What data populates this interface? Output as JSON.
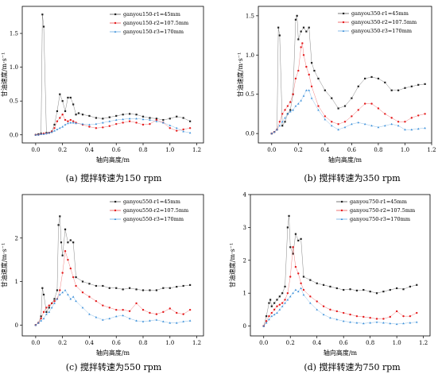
{
  "chart_data": [
    {
      "type": "line",
      "caption": "(a) 搅拌转速为150 rpm",
      "xlabel": "轴向高度/m",
      "ylabel": "甘油速度/m·s⁻¹",
      "xlim": [
        -0.1,
        1.25
      ],
      "ylim": [
        -0.12,
        1.9
      ],
      "xticks": [
        0.0,
        0.2,
        0.4,
        0.6,
        0.8,
        1.0,
        1.2
      ],
      "xtick_labels": [
        "0.0",
        "0.2",
        "0.4",
        "0.6",
        "0.8",
        "1.0",
        "1.2"
      ],
      "yticks": [
        0.0,
        0.5,
        1.0,
        1.5
      ],
      "ytick_labels": [
        "0.0",
        "0.5",
        "1.0",
        "1.5"
      ],
      "legend_position": "top-right",
      "series": [
        {
          "name": "ganyou150-r1=45mm",
          "color": "#222222",
          "marker": "square",
          "x": [
            0.0,
            0.02,
            0.04,
            0.05,
            0.06,
            0.08,
            0.1,
            0.12,
            0.14,
            0.16,
            0.18,
            0.2,
            0.22,
            0.24,
            0.26,
            0.28,
            0.3,
            0.32,
            0.35,
            0.4,
            0.45,
            0.5,
            0.55,
            0.6,
            0.65,
            0.7,
            0.75,
            0.8,
            0.85,
            0.9,
            0.95,
            1.0,
            1.05,
            1.1,
            1.15
          ],
          "y": [
            0.0,
            0.01,
            0.02,
            1.78,
            1.6,
            0.03,
            0.03,
            0.05,
            0.15,
            0.35,
            0.6,
            0.5,
            0.35,
            0.55,
            0.55,
            0.45,
            0.3,
            0.32,
            0.3,
            0.28,
            0.25,
            0.24,
            0.26,
            0.28,
            0.3,
            0.31,
            0.3,
            0.27,
            0.25,
            0.24,
            0.22,
            0.24,
            0.27,
            0.25,
            0.2
          ]
        },
        {
          "name": "ganyou150-r2=107.5mm",
          "color": "#e41a1c",
          "marker": "circle",
          "x": [
            0.0,
            0.02,
            0.04,
            0.06,
            0.08,
            0.1,
            0.12,
            0.14,
            0.16,
            0.18,
            0.2,
            0.22,
            0.24,
            0.26,
            0.28,
            0.3,
            0.35,
            0.4,
            0.45,
            0.5,
            0.55,
            0.6,
            0.65,
            0.7,
            0.75,
            0.8,
            0.85,
            0.9,
            0.95,
            1.0,
            1.05,
            1.1,
            1.15
          ],
          "y": [
            0.0,
            0.0,
            0.01,
            0.02,
            0.02,
            0.03,
            0.05,
            0.1,
            0.2,
            0.25,
            0.3,
            0.22,
            0.2,
            0.22,
            0.2,
            0.18,
            0.15,
            0.12,
            0.1,
            0.11,
            0.13,
            0.16,
            0.18,
            0.2,
            0.18,
            0.15,
            0.16,
            0.22,
            0.18,
            0.1,
            0.06,
            0.08,
            0.1
          ]
        },
        {
          "name": "ganyou150-r3=170mm",
          "color": "#3a8fd9",
          "marker": "triangle",
          "x": [
            0.0,
            0.02,
            0.04,
            0.06,
            0.08,
            0.1,
            0.12,
            0.14,
            0.16,
            0.18,
            0.2,
            0.22,
            0.24,
            0.26,
            0.28,
            0.3,
            0.35,
            0.4,
            0.45,
            0.5,
            0.55,
            0.6,
            0.65,
            0.7,
            0.75,
            0.8,
            0.85,
            0.9,
            0.95,
            1.0,
            1.05,
            1.1,
            1.15
          ],
          "y": [
            0.0,
            0.0,
            0.01,
            0.01,
            0.02,
            0.03,
            0.04,
            0.06,
            0.08,
            0.1,
            0.12,
            0.15,
            0.17,
            0.18,
            0.18,
            0.17,
            0.16,
            0.15,
            0.16,
            0.18,
            0.2,
            0.22,
            0.23,
            0.24,
            0.24,
            0.23,
            0.22,
            0.2,
            0.18,
            0.14,
            0.1,
            0.05,
            0.03
          ]
        }
      ]
    },
    {
      "type": "line",
      "caption": "(b) 搅拌转速为350 rpm",
      "xlabel": "轴向高度/m",
      "ylabel": "甘油速度/m·s⁻¹",
      "xlim": [
        -0.1,
        1.2
      ],
      "ylim": [
        -0.12,
        1.62
      ],
      "xticks": [
        0.0,
        0.2,
        0.4,
        0.6,
        0.8,
        1.0,
        1.2
      ],
      "xtick_labels": [
        "0.0",
        "0.2",
        "0.4",
        "0.6",
        "0.8",
        "1.0",
        "1.2"
      ],
      "yticks": [
        0.0,
        0.5,
        1.0,
        1.5
      ],
      "ytick_labels": [
        "0.0",
        "0.5",
        "1.0",
        "1.5"
      ],
      "legend_position": "top-right",
      "series": [
        {
          "name": "ganyou350-r1=45mm",
          "color": "#222222",
          "marker": "square",
          "x": [
            0.0,
            0.02,
            0.04,
            0.05,
            0.06,
            0.08,
            0.1,
            0.12,
            0.14,
            0.16,
            0.18,
            0.19,
            0.2,
            0.22,
            0.24,
            0.26,
            0.28,
            0.3,
            0.32,
            0.35,
            0.4,
            0.45,
            0.5,
            0.55,
            0.6,
            0.65,
            0.7,
            0.75,
            0.8,
            0.85,
            0.9,
            0.95,
            1.0,
            1.05,
            1.1,
            1.15
          ],
          "y": [
            0.0,
            0.02,
            0.05,
            1.35,
            1.25,
            0.1,
            0.15,
            0.25,
            0.3,
            0.5,
            1.45,
            1.5,
            1.2,
            1.3,
            1.35,
            1.3,
            1.35,
            0.9,
            0.8,
            0.7,
            0.55,
            0.45,
            0.32,
            0.35,
            0.45,
            0.6,
            0.7,
            0.72,
            0.7,
            0.65,
            0.55,
            0.55,
            0.58,
            0.6,
            0.62,
            0.63
          ]
        },
        {
          "name": "ganyou350-r2=107.5mm",
          "color": "#e41a1c",
          "marker": "circle",
          "x": [
            0.0,
            0.02,
            0.04,
            0.06,
            0.08,
            0.1,
            0.12,
            0.14,
            0.16,
            0.18,
            0.2,
            0.22,
            0.23,
            0.24,
            0.26,
            0.28,
            0.3,
            0.35,
            0.4,
            0.45,
            0.5,
            0.55,
            0.6,
            0.65,
            0.7,
            0.75,
            0.8,
            0.85,
            0.9,
            0.95,
            1.0,
            1.05,
            1.1,
            1.15
          ],
          "y": [
            0.0,
            0.02,
            0.05,
            0.15,
            0.25,
            0.3,
            0.35,
            0.4,
            0.5,
            0.7,
            0.8,
            1.1,
            1.15,
            1.0,
            0.85,
            0.75,
            0.6,
            0.35,
            0.22,
            0.15,
            0.12,
            0.15,
            0.22,
            0.3,
            0.38,
            0.38,
            0.32,
            0.25,
            0.2,
            0.15,
            0.15,
            0.2,
            0.23,
            0.25
          ]
        },
        {
          "name": "ganyou350-r3=170mm",
          "color": "#3a8fd9",
          "marker": "triangle",
          "x": [
            0.0,
            0.02,
            0.04,
            0.06,
            0.08,
            0.1,
            0.12,
            0.14,
            0.16,
            0.18,
            0.2,
            0.22,
            0.24,
            0.26,
            0.28,
            0.3,
            0.35,
            0.4,
            0.45,
            0.5,
            0.55,
            0.6,
            0.65,
            0.7,
            0.75,
            0.8,
            0.85,
            0.9,
            0.95,
            1.0,
            1.05,
            1.1,
            1.15
          ],
          "y": [
            0.0,
            0.02,
            0.05,
            0.1,
            0.15,
            0.2,
            0.25,
            0.28,
            0.3,
            0.35,
            0.38,
            0.42,
            0.48,
            0.55,
            0.55,
            0.45,
            0.3,
            0.18,
            0.1,
            0.05,
            0.08,
            0.12,
            0.14,
            0.12,
            0.1,
            0.08,
            0.1,
            0.12,
            0.1,
            0.05,
            0.05,
            0.06,
            0.07
          ]
        }
      ]
    },
    {
      "type": "line",
      "caption": "(c) 搅拌转速为550 rpm",
      "xlabel": "轴向高度/m",
      "ylabel": "甘油速度/m·s⁻¹",
      "xlim": [
        -0.1,
        1.25
      ],
      "ylim": [
        -0.25,
        3.0
      ],
      "xticks": [
        0.0,
        0.2,
        0.4,
        0.6,
        0.8,
        1.0,
        1.2
      ],
      "xtick_labels": [
        "0.0",
        "0.2",
        "0.4",
        "0.6",
        "0.8",
        "1.0",
        "1.2"
      ],
      "yticks": [
        0,
        1,
        2
      ],
      "ytick_labels": [
        "0",
        "1",
        "2"
      ],
      "legend_position": "top-right",
      "series": [
        {
          "name": "ganyou550-r1=45mm",
          "color": "#222222",
          "marker": "square",
          "x": [
            0.0,
            0.02,
            0.04,
            0.05,
            0.06,
            0.08,
            0.1,
            0.12,
            0.14,
            0.16,
            0.17,
            0.18,
            0.19,
            0.2,
            0.22,
            0.24,
            0.26,
            0.28,
            0.3,
            0.35,
            0.4,
            0.45,
            0.5,
            0.55,
            0.6,
            0.65,
            0.7,
            0.75,
            0.8,
            0.85,
            0.9,
            0.95,
            1.0,
            1.05,
            1.1,
            1.15
          ],
          "y": [
            0.0,
            0.05,
            0.2,
            0.85,
            0.7,
            0.3,
            0.4,
            0.5,
            0.6,
            0.8,
            2.3,
            2.5,
            1.9,
            1.6,
            2.2,
            1.9,
            1.95,
            1.9,
            1.1,
            1.0,
            0.95,
            0.9,
            0.9,
            0.85,
            0.85,
            0.82,
            0.85,
            0.82,
            0.8,
            0.8,
            0.8,
            0.85,
            0.85,
            0.88,
            0.9,
            0.92
          ]
        },
        {
          "name": "ganyou550-r2=107.5mm",
          "color": "#e41a1c",
          "marker": "circle",
          "x": [
            0.0,
            0.02,
            0.04,
            0.06,
            0.08,
            0.1,
            0.12,
            0.14,
            0.16,
            0.18,
            0.2,
            0.22,
            0.24,
            0.26,
            0.28,
            0.3,
            0.35,
            0.4,
            0.45,
            0.5,
            0.55,
            0.6,
            0.65,
            0.7,
            0.75,
            0.8,
            0.85,
            0.9,
            0.95,
            1.0,
            1.05,
            1.1,
            1.15
          ],
          "y": [
            0.0,
            0.05,
            0.15,
            0.3,
            0.4,
            0.45,
            0.5,
            0.55,
            0.6,
            0.8,
            1.2,
            1.7,
            1.5,
            1.3,
            1.1,
            0.9,
            0.75,
            0.65,
            0.55,
            0.45,
            0.4,
            0.35,
            0.35,
            0.32,
            0.5,
            0.35,
            0.28,
            0.25,
            0.3,
            0.38,
            0.28,
            0.25,
            0.35
          ]
        },
        {
          "name": "ganyou550-r3=170mm",
          "color": "#3a8fd9",
          "marker": "triangle",
          "x": [
            0.0,
            0.02,
            0.04,
            0.06,
            0.08,
            0.1,
            0.12,
            0.14,
            0.16,
            0.18,
            0.2,
            0.22,
            0.24,
            0.26,
            0.28,
            0.3,
            0.35,
            0.4,
            0.45,
            0.5,
            0.55,
            0.6,
            0.65,
            0.7,
            0.75,
            0.8,
            0.85,
            0.9,
            0.95,
            1.0,
            1.05,
            1.1,
            1.15
          ],
          "y": [
            0.0,
            0.05,
            0.1,
            0.15,
            0.25,
            0.3,
            0.4,
            0.5,
            0.6,
            0.7,
            0.75,
            0.8,
            0.7,
            0.6,
            0.65,
            0.55,
            0.4,
            0.25,
            0.18,
            0.12,
            0.15,
            0.2,
            0.22,
            0.15,
            0.1,
            0.08,
            0.1,
            0.12,
            0.08,
            0.05,
            0.05,
            0.08,
            0.1
          ]
        }
      ]
    },
    {
      "type": "line",
      "caption": "(d) 搅拌转速为750 rpm",
      "xlabel": "轴向高度/m",
      "ylabel": "甘油速度/m·s⁻¹",
      "xlim": [
        -0.1,
        1.25
      ],
      "ylim": [
        -0.3,
        4.0
      ],
      "xticks": [
        0.0,
        0.2,
        0.4,
        0.6,
        0.8,
        1.0,
        1.2
      ],
      "xtick_labels": [
        "0.0",
        "0.2",
        "0.4",
        "0.6",
        "0.8",
        "1.0",
        "1.2"
      ],
      "yticks": [
        0,
        1,
        2,
        3,
        4
      ],
      "ytick_labels": [
        "0",
        "1",
        "2",
        "3",
        "4"
      ],
      "legend_position": "top-right",
      "series": [
        {
          "name": "ganyou750-r1=45mm",
          "color": "#222222",
          "marker": "square",
          "x": [
            0.0,
            0.02,
            0.04,
            0.05,
            0.06,
            0.08,
            0.1,
            0.12,
            0.14,
            0.16,
            0.18,
            0.19,
            0.2,
            0.22,
            0.24,
            0.26,
            0.28,
            0.3,
            0.35,
            0.4,
            0.45,
            0.5,
            0.55,
            0.6,
            0.65,
            0.7,
            0.75,
            0.8,
            0.85,
            0.9,
            0.95,
            1.0,
            1.05,
            1.1,
            1.15
          ],
          "y": [
            0.0,
            0.3,
            0.7,
            0.8,
            0.6,
            0.7,
            0.8,
            0.9,
            1.0,
            1.2,
            3.0,
            3.35,
            2.4,
            2.2,
            2.8,
            2.6,
            2.65,
            1.5,
            1.4,
            1.3,
            1.25,
            1.2,
            1.15,
            1.1,
            1.12,
            1.08,
            1.1,
            1.05,
            1.0,
            1.05,
            1.1,
            1.15,
            1.12,
            1.2,
            1.25
          ]
        },
        {
          "name": "ganyou750-r2=107.5mm",
          "color": "#e41a1c",
          "marker": "circle",
          "x": [
            0.0,
            0.02,
            0.04,
            0.06,
            0.08,
            0.1,
            0.12,
            0.14,
            0.16,
            0.18,
            0.2,
            0.22,
            0.24,
            0.26,
            0.28,
            0.3,
            0.35,
            0.4,
            0.45,
            0.5,
            0.55,
            0.6,
            0.65,
            0.7,
            0.75,
            0.8,
            0.85,
            0.9,
            0.95,
            1.0,
            1.05,
            1.1,
            1.15
          ],
          "y": [
            0.0,
            0.15,
            0.3,
            0.4,
            0.5,
            0.6,
            0.65,
            0.7,
            0.8,
            1.0,
            1.5,
            2.4,
            1.8,
            1.6,
            1.3,
            1.1,
            0.9,
            0.75,
            0.6,
            0.5,
            0.45,
            0.4,
            0.35,
            0.3,
            0.28,
            0.25,
            0.22,
            0.22,
            0.28,
            0.45,
            0.3,
            0.3,
            0.4
          ]
        },
        {
          "name": "ganyou750-r3=170mm",
          "color": "#3a8fd9",
          "marker": "triangle",
          "x": [
            0.0,
            0.02,
            0.04,
            0.06,
            0.08,
            0.1,
            0.12,
            0.14,
            0.16,
            0.18,
            0.2,
            0.22,
            0.24,
            0.26,
            0.28,
            0.3,
            0.35,
            0.4,
            0.45,
            0.5,
            0.55,
            0.6,
            0.65,
            0.7,
            0.75,
            0.8,
            0.85,
            0.9,
            0.95,
            1.0,
            1.05,
            1.1,
            1.15
          ],
          "y": [
            0.0,
            0.1,
            0.2,
            0.3,
            0.35,
            0.4,
            0.5,
            0.6,
            0.7,
            0.8,
            0.9,
            1.0,
            1.1,
            1.05,
            1.15,
            0.95,
            0.7,
            0.5,
            0.35,
            0.25,
            0.2,
            0.15,
            0.12,
            0.1,
            0.08,
            0.1,
            0.12,
            0.1,
            0.08,
            0.06,
            0.08,
            0.1,
            0.12
          ]
        }
      ]
    }
  ]
}
